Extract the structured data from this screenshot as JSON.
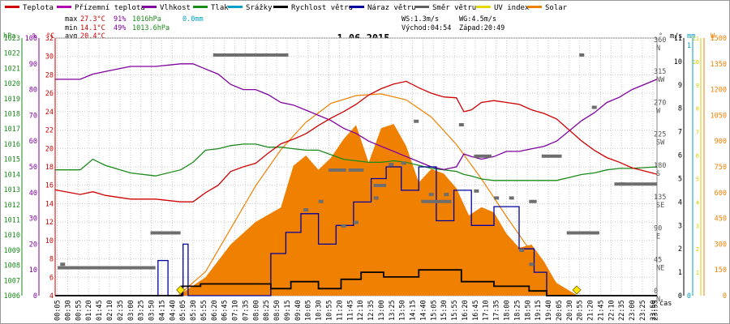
{
  "chart_data": {
    "type": "line",
    "title": "1.06.2015",
    "legend": [
      {
        "name": "Teplota",
        "color": "#d00000"
      },
      {
        "name": "Přízemní teplota",
        "color": "#b000b0"
      },
      {
        "name": "Vlhkost",
        "color": "#8000a0"
      },
      {
        "name": "Tlak",
        "color": "#1a8a1a"
      },
      {
        "name": "Srážky",
        "color": "#00a0c8"
      },
      {
        "name": "Rychlost větru",
        "color": "#000000"
      },
      {
        "name": "Náraz větru",
        "color": "#0000a0"
      },
      {
        "name": "Směr větru",
        "color": "#606060"
      },
      {
        "name": "UV index",
        "color": "#e6d800"
      },
      {
        "name": "Solar",
        "color": "#f08000"
      }
    ],
    "stats": {
      "max": {
        "label": "max",
        "temp": "27.3°C",
        "hum": "91%",
        "press": "1016hPa",
        "rain": "0.0mm"
      },
      "min": {
        "label": "min",
        "temp": "14.1°C",
        "hum": "49%",
        "press": "1013.6hPa"
      },
      "avg": {
        "label": "avg",
        "temp": "20.4°C"
      }
    },
    "wind_info": {
      "ws": "WS:1.3m/s",
      "wg": "WG:4.5m/s",
      "sunrise": "Východ:04:54",
      "sunset": "Západ:20:49"
    },
    "axes": {
      "hpa": {
        "unit": "hPa",
        "range": [
          1006,
          1023
        ],
        "ticks": [
          "1006",
          "1007",
          "1008",
          "1009",
          "1010",
          "1011",
          "1012",
          "1013",
          "1014",
          "1015",
          "1016",
          "1017",
          "1018",
          "1019",
          "1020",
          "1021",
          "1022",
          "1023"
        ]
      },
      "percent": {
        "unit": "%",
        "range": [
          0,
          100
        ],
        "ticks": [
          "0",
          "10",
          "20",
          "30",
          "40",
          "50",
          "60",
          "70",
          "80",
          "90",
          "100"
        ]
      },
      "celsius": {
        "unit": "°C",
        "range": [
          4,
          32
        ],
        "ticks": [
          "4",
          "6",
          "8",
          "10",
          "12",
          "14",
          "16",
          "18",
          "20",
          "22",
          "24",
          "26",
          "28",
          "30",
          "32"
        ]
      },
      "direction": {
        "unit": "°",
        "ticks": [
          {
            "value": 0,
            "deg": "0",
            "dir": "N"
          },
          {
            "value": 45,
            "deg": "45",
            "dir": "NE"
          },
          {
            "value": 90,
            "deg": "90",
            "dir": "E"
          },
          {
            "value": 135,
            "deg": "135",
            "dir": "SE"
          },
          {
            "value": 180,
            "deg": "180",
            "dir": "S"
          },
          {
            "value": 225,
            "deg": "225",
            "dir": "SW"
          },
          {
            "value": 270,
            "deg": "270",
            "dir": "W"
          },
          {
            "value": 315,
            "deg": "315",
            "dir": "NW"
          },
          {
            "value": 360,
            "deg": "360",
            "dir": "N"
          }
        ]
      },
      "wind_speed": {
        "unit": "m/s",
        "range": [
          0,
          11
        ],
        "ticks": [
          "0",
          "1",
          "2",
          "3",
          "4",
          "5",
          "6",
          "7",
          "8",
          "9",
          "10",
          "11"
        ]
      },
      "rain": {
        "unit": "mm",
        "range": [
          0,
          1
        ],
        "ticks": [
          "0",
          "1"
        ]
      },
      "solar": {
        "unit": "W",
        "range": [
          0,
          1500
        ],
        "ticks": [
          "0",
          "150",
          "300",
          "450",
          "600",
          "750",
          "900",
          "1050",
          "1200",
          "1350",
          "1500"
        ]
      },
      "uv": {
        "ticks": [
          "1",
          "2",
          "3",
          "4",
          "5",
          "6",
          "7",
          "8",
          "9",
          "10",
          "11"
        ]
      },
      "time": {
        "label": "čas",
        "ticks": [
          "00:05",
          "00:30",
          "00:55",
          "01:20",
          "01:45",
          "02:10",
          "02:35",
          "03:00",
          "03:25",
          "03:50",
          "04:15",
          "04:40",
          "05:05",
          "05:30",
          "05:55",
          "06:20",
          "06:45",
          "07:10",
          "07:35",
          "08:00",
          "08:25",
          "08:50",
          "09:15",
          "09:40",
          "10:05",
          "10:30",
          "10:55",
          "11:20",
          "11:45",
          "12:10",
          "12:35",
          "13:00",
          "13:25",
          "13:50",
          "14:15",
          "14:40",
          "15:05",
          "15:30",
          "15:55",
          "16:20",
          "16:45",
          "17:10",
          "17:35",
          "18:00",
          "18:25",
          "18:50",
          "19:15",
          "19:40",
          "20:05",
          "20:30",
          "20:55",
          "21:20",
          "21:45",
          "22:10",
          "22:35",
          "23:00",
          "23:25",
          "23:50",
          "23:55"
        ]
      }
    },
    "series": [
      {
        "name": "Teplota",
        "unit": "°C",
        "x_hours": [
          0,
          1,
          1.5,
          2,
          3,
          4,
          5,
          5.5,
          6,
          6.5,
          7,
          7.5,
          8,
          8.5,
          9,
          9.5,
          10,
          10.5,
          11,
          11.5,
          12,
          12.5,
          13,
          13.5,
          14,
          14.5,
          15,
          15.5,
          16,
          16.3,
          16.6,
          17,
          17.5,
          18,
          18.5,
          19,
          19.5,
          20,
          20.5,
          21,
          21.5,
          22,
          22.5,
          23,
          24
        ],
        "values": [
          15.5,
          15.0,
          15.3,
          14.9,
          14.5,
          14.5,
          14.2,
          14.2,
          15.2,
          16.0,
          17.5,
          18.0,
          18.4,
          19.5,
          20.5,
          21.0,
          21.6,
          22.5,
          23.3,
          24.0,
          24.8,
          25.8,
          26.5,
          27.0,
          27.3,
          26.6,
          26.0,
          25.6,
          25.5,
          24.0,
          24.2,
          25.0,
          25.2,
          25.0,
          24.8,
          24.2,
          23.8,
          23.2,
          22.0,
          20.8,
          19.8,
          19.0,
          18.5,
          17.9,
          17.2
        ]
      },
      {
        "name": "Vlhkost",
        "unit": "%",
        "x_hours": [
          0,
          1,
          1.5,
          2,
          3,
          4,
          5,
          5.5,
          6,
          6.5,
          7,
          7.5,
          8,
          8.5,
          9,
          9.5,
          10,
          10.5,
          11,
          11.5,
          12,
          12.5,
          13,
          13.5,
          14,
          14.5,
          15,
          15.5,
          16,
          16.3,
          16.6,
          17,
          17.5,
          18,
          18.5,
          19,
          19.5,
          20,
          20.5,
          21,
          21.5,
          22,
          22.5,
          23,
          24
        ],
        "values": [
          84,
          84,
          86,
          87,
          89,
          89,
          90,
          90,
          88,
          86,
          82,
          80,
          80,
          78,
          75,
          74,
          72,
          70,
          68,
          65,
          63,
          60,
          58,
          56,
          54,
          52,
          50,
          49,
          50,
          55,
          54,
          53,
          54,
          56,
          56,
          57,
          58,
          60,
          64,
          68,
          71,
          75,
          77,
          80,
          84
        ]
      },
      {
        "name": "Tlak",
        "unit": "hPa",
        "x_hours": [
          0,
          1,
          1.5,
          2,
          3,
          4,
          5,
          5.5,
          6,
          6.5,
          7,
          7.5,
          8,
          8.5,
          9,
          9.5,
          10,
          10.5,
          11,
          11.5,
          12,
          12.5,
          13,
          13.5,
          14,
          14.5,
          15,
          15.5,
          16,
          16.3,
          16.6,
          17,
          17.5,
          18,
          18.5,
          19,
          19.5,
          20,
          20.5,
          21,
          21.5,
          22,
          22.5,
          23,
          24
        ],
        "values": [
          1014.3,
          1014.3,
          1015.0,
          1014.6,
          1014.1,
          1013.9,
          1014.3,
          1014.8,
          1015.6,
          1015.7,
          1015.9,
          1016.0,
          1016.0,
          1015.8,
          1015.8,
          1015.7,
          1015.6,
          1015.6,
          1015.3,
          1015.0,
          1014.9,
          1014.8,
          1014.8,
          1014.9,
          1014.8,
          1014.6,
          1014.4,
          1014.3,
          1014.2,
          1014.0,
          1013.9,
          1013.7,
          1013.6,
          1013.6,
          1013.6,
          1013.6,
          1013.6,
          1013.6,
          1013.8,
          1014.0,
          1014.1,
          1014.3,
          1014.4,
          1014.4,
          1014.5
        ]
      },
      {
        "name": "Rychlost větru",
        "unit": "m/s",
        "x_hours": [
          0,
          4.9,
          5.05,
          5.6,
          5.8,
          8.4,
          8.6,
          9.2,
          9.4,
          10.3,
          10.5,
          11.2,
          11.4,
          12.0,
          12.2,
          12.9,
          13.1,
          14.3,
          14.5,
          16.0,
          16.2,
          17.3,
          17.5,
          18.6,
          18.9,
          19.4,
          19.6,
          24
        ],
        "values": [
          0,
          0,
          0.4,
          0.4,
          0.5,
          0.5,
          0.3,
          0.3,
          0.6,
          0.6,
          0.3,
          0.3,
          0.7,
          0.7,
          1.0,
          1.0,
          0.8,
          0.8,
          1.1,
          1.1,
          0.6,
          0.6,
          0.4,
          0.4,
          0.2,
          0.2,
          0,
          0
        ]
      },
      {
        "name": "Náraz větru",
        "unit": "m/s",
        "x_hours": [
          0,
          3.9,
          4.1,
          4.3,
          4.5,
          5.0,
          5.1,
          5.2,
          5.3,
          8.4,
          8.6,
          9.0,
          9.2,
          9.6,
          9.8,
          10.2,
          10.5,
          10.9,
          11.2,
          11.6,
          11.9,
          12.3,
          12.6,
          13.0,
          13.2,
          13.5,
          13.8,
          14.2,
          14.5,
          14.9,
          15.2,
          15.5,
          15.9,
          16.3,
          16.6,
          17.1,
          17.5,
          18.2,
          18.5,
          18.9,
          19.1,
          19.4,
          19.6,
          24
        ],
        "values": [
          0,
          0,
          1.5,
          1.5,
          0,
          0,
          2.2,
          2.2,
          0,
          0,
          1.8,
          1.8,
          2.7,
          2.7,
          3.5,
          3.5,
          2.2,
          2.2,
          3.0,
          3.0,
          4.0,
          4.0,
          5.0,
          5.0,
          5.5,
          5.5,
          4.5,
          4.5,
          5.5,
          5.5,
          3.2,
          3.2,
          4.5,
          4.5,
          3.0,
          3.0,
          3.8,
          3.8,
          2.0,
          2.0,
          1.0,
          1.0,
          0,
          0
        ]
      },
      {
        "name": "Solar",
        "unit": "W/m2",
        "x_hours": [
          4.9,
          6,
          7,
          8,
          9,
          9.5,
          10,
          10.5,
          11,
          11.5,
          12,
          12.5,
          13,
          13.5,
          14,
          14.5,
          15,
          15.5,
          16,
          16.5,
          17,
          17.5,
          18,
          18.5,
          19,
          19.5,
          20,
          20.8
        ],
        "values": [
          0,
          100,
          260,
          420,
          560,
          680,
          720,
          760,
          820,
          800,
          900,
          860,
          940,
          920,
          820,
          760,
          680,
          620,
          620,
          500,
          460,
          430,
          380,
          280,
          260,
          180,
          80,
          0
        ]
      },
      {
        "name": "Solar max",
        "unit": "W/m2",
        "x_hours": [
          4.9,
          6,
          7,
          8,
          9,
          10,
          11,
          12,
          13,
          14,
          15,
          16,
          17,
          18,
          19,
          20,
          20.8
        ],
        "values": [
          0,
          140,
          390,
          640,
          850,
          1010,
          1120,
          1165,
          1175,
          1140,
          1040,
          880,
          680,
          460,
          250,
          70,
          0
        ]
      }
    ],
    "wind_direction_bars": [
      {
        "x": [
          0.1,
          4.0
        ],
        "deg": 40
      },
      {
        "x": [
          3.8,
          5.0
        ],
        "deg": 90
      },
      {
        "x": [
          6.3,
          9.3
        ],
        "deg": 345
      },
      {
        "x": [
          10.9,
          11.6
        ],
        "deg": 180
      },
      {
        "x": [
          11.7,
          12.3
        ],
        "deg": 180
      },
      {
        "x": [
          12.7,
          13.2
        ],
        "deg": 158
      },
      {
        "x": [
          14.6,
          15.8
        ],
        "deg": 135
      },
      {
        "x": [
          16.7,
          17.4
        ],
        "deg": 200
      },
      {
        "x": [
          18.9,
          19.2
        ],
        "deg": 135
      },
      {
        "x": [
          19.4,
          20.2
        ],
        "deg": 200
      },
      {
        "x": [
          20.4,
          21.7
        ],
        "deg": 90
      },
      {
        "x": [
          22.3,
          23.0
        ],
        "deg": 160
      },
      {
        "x": [
          23.0,
          24.0
        ],
        "deg": 160
      }
    ],
    "wind_direction_points": [
      {
        "x": 0.3,
        "deg": 45
      },
      {
        "x": 10.0,
        "deg": 123
      },
      {
        "x": 10.6,
        "deg": 135
      },
      {
        "x": 11.5,
        "deg": 100
      },
      {
        "x": 12.0,
        "deg": 105
      },
      {
        "x": 12.8,
        "deg": 140
      },
      {
        "x": 13.4,
        "deg": 188
      },
      {
        "x": 13.9,
        "deg": 190
      },
      {
        "x": 14.4,
        "deg": 250
      },
      {
        "x": 15.0,
        "deg": 145
      },
      {
        "x": 15.6,
        "deg": 145
      },
      {
        "x": 16.2,
        "deg": 245
      },
      {
        "x": 16.8,
        "deg": 150
      },
      {
        "x": 17.6,
        "deg": 140
      },
      {
        "x": 18.2,
        "deg": 140
      },
      {
        "x": 18.6,
        "deg": 65
      },
      {
        "x": 19.0,
        "deg": 45
      },
      {
        "x": 21.0,
        "deg": 345
      },
      {
        "x": 21.5,
        "deg": 270
      },
      {
        "x": 22.6,
        "deg": 160
      }
    ],
    "uv_markers": [
      {
        "x": 5.0
      },
      {
        "x": 20.8
      }
    ]
  }
}
